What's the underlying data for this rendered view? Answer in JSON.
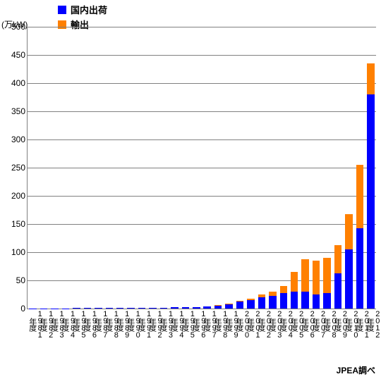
{
  "chart": {
    "type": "stacked-bar",
    "y_axis_title": "(万kW)",
    "credit": "JPEA調べ",
    "legend": [
      {
        "label": "国内出荷",
        "color": "#0000ff"
      },
      {
        "label": "輸出",
        "color": "#ff8000"
      }
    ],
    "y_axis": {
      "min": 0,
      "max": 500,
      "ticks": [
        0,
        50,
        100,
        150,
        200,
        250,
        300,
        350,
        400,
        450,
        500
      ]
    },
    "colors": {
      "series1": "#0000ff",
      "series2": "#ff8000",
      "grid": "#808080",
      "background": "#ffffff",
      "text": "#000000"
    },
    "categories": [
      "1981年度",
      "1982年度",
      "1983年度",
      "1984年度",
      "1985年度",
      "1986年度",
      "1987年度",
      "1988年度",
      "1989年度",
      "1990年度",
      "1991年度",
      "1992年度",
      "1993年度",
      "1994年度",
      "1995年度",
      "1996年度",
      "1997年度",
      "1998年度",
      "1999年度",
      "2000年度",
      "2001年度",
      "2002年度",
      "2003年度",
      "2004年度",
      "2005年度",
      "2006年度",
      "2007年度",
      "2008年度",
      "2009年度",
      "2010年度",
      "2011年度",
      "2012年度"
    ],
    "series": [
      {
        "name": "国内出荷",
        "data": [
          0.5,
          0.5,
          0.5,
          0.5,
          1,
          1,
          1,
          1,
          1,
          1,
          1,
          1,
          1,
          2,
          2,
          3,
          4,
          5,
          8,
          12,
          15,
          20,
          22,
          28,
          30,
          30,
          25,
          27,
          62,
          105,
          142,
          380
        ]
      },
      {
        "name": "輸出",
        "data": [
          0,
          0,
          0,
          0,
          0,
          0,
          0,
          0,
          0,
          0,
          0,
          0,
          0,
          0,
          0,
          0,
          0,
          1,
          1,
          2,
          3,
          5,
          8,
          12,
          35,
          58,
          60,
          63,
          50,
          62,
          113,
          55
        ]
      }
    ],
    "bar_width_ratio": 0.68,
    "font_size_axis": 12,
    "font_size_legend": 13
  }
}
